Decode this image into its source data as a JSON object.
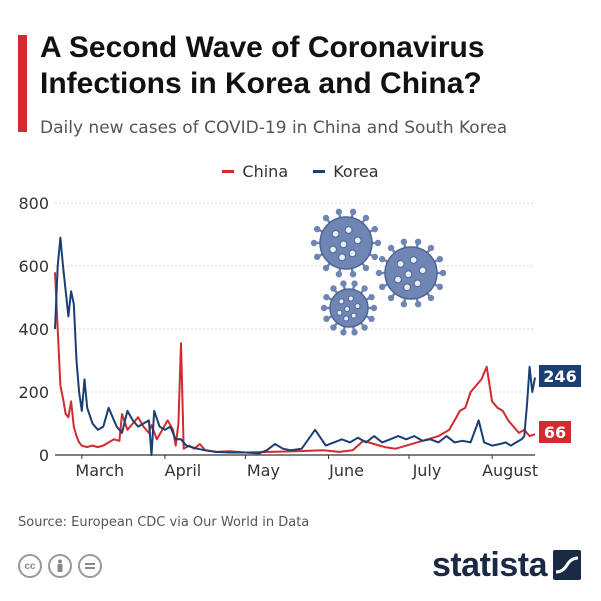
{
  "header": {
    "title": "A Second Wave of Coronavirus Infections in Korea and China?",
    "subtitle": "Daily new cases of COVID-19 in China and South Korea"
  },
  "legend": {
    "china_label": "China",
    "korea_label": "Korea"
  },
  "colors": {
    "china": "#d32a2f",
    "korea": "#1b3f73",
    "accent": "#d32a2f",
    "virus": "#6f86b4"
  },
  "footer": {
    "source": "Source: European CDC via Our World in Data",
    "brand": "statista",
    "icons": [
      "cc-icon",
      "by-icon",
      "nd-icon"
    ]
  },
  "chart_data": {
    "type": "line",
    "ylim": [
      0,
      800
    ],
    "yticks": [
      0,
      200,
      400,
      600,
      800
    ],
    "xtick_labels": [
      "March",
      "April",
      "May",
      "June",
      "July",
      "August"
    ],
    "x_start": "2020-02-20",
    "x_end": "2020-08-17",
    "grid": true,
    "legend_position": "top-center",
    "series": [
      {
        "name": "China",
        "end_label": "66",
        "points": [
          [
            "2020-02-20",
            580
          ],
          [
            "2020-02-21",
            400
          ],
          [
            "2020-02-22",
            220
          ],
          [
            "2020-02-23",
            180
          ],
          [
            "2020-02-24",
            130
          ],
          [
            "2020-02-25",
            120
          ],
          [
            "2020-02-26",
            170
          ],
          [
            "2020-02-27",
            90
          ],
          [
            "2020-02-28",
            60
          ],
          [
            "2020-02-29",
            40
          ],
          [
            "2020-03-01",
            30
          ],
          [
            "2020-03-03",
            25
          ],
          [
            "2020-03-05",
            30
          ],
          [
            "2020-03-07",
            25
          ],
          [
            "2020-03-09",
            30
          ],
          [
            "2020-03-11",
            40
          ],
          [
            "2020-03-13",
            50
          ],
          [
            "2020-03-15",
            45
          ],
          [
            "2020-03-16",
            130
          ],
          [
            "2020-03-18",
            80
          ],
          [
            "2020-03-20",
            100
          ],
          [
            "2020-03-22",
            120
          ],
          [
            "2020-03-24",
            90
          ],
          [
            "2020-03-26",
            70
          ],
          [
            "2020-03-27",
            95
          ],
          [
            "2020-03-29",
            50
          ],
          [
            "2020-03-31",
            80
          ],
          [
            "2020-04-02",
            110
          ],
          [
            "2020-04-04",
            80
          ],
          [
            "2020-04-05",
            30
          ],
          [
            "2020-04-06",
            100
          ],
          [
            "2020-04-07",
            355
          ],
          [
            "2020-04-08",
            20
          ],
          [
            "2020-04-10",
            30
          ],
          [
            "2020-04-12",
            20
          ],
          [
            "2020-04-14",
            35
          ],
          [
            "2020-04-16",
            15
          ],
          [
            "2020-04-20",
            10
          ],
          [
            "2020-04-25",
            12
          ],
          [
            "2020-05-01",
            8
          ],
          [
            "2020-05-10",
            10
          ],
          [
            "2020-05-20",
            12
          ],
          [
            "2020-05-30",
            15
          ],
          [
            "2020-06-05",
            10
          ],
          [
            "2020-06-10",
            15
          ],
          [
            "2020-06-14",
            45
          ],
          [
            "2020-06-18",
            35
          ],
          [
            "2020-06-22",
            25
          ],
          [
            "2020-06-26",
            20
          ],
          [
            "2020-06-30",
            30
          ],
          [
            "2020-07-04",
            40
          ],
          [
            "2020-07-08",
            50
          ],
          [
            "2020-07-12",
            60
          ],
          [
            "2020-07-16",
            80
          ],
          [
            "2020-07-18",
            110
          ],
          [
            "2020-07-20",
            140
          ],
          [
            "2020-07-22",
            150
          ],
          [
            "2020-07-24",
            200
          ],
          [
            "2020-07-26",
            220
          ],
          [
            "2020-07-28",
            240
          ],
          [
            "2020-07-30",
            280
          ],
          [
            "2020-08-01",
            170
          ],
          [
            "2020-08-03",
            150
          ],
          [
            "2020-08-05",
            140
          ],
          [
            "2020-08-07",
            110
          ],
          [
            "2020-08-09",
            90
          ],
          [
            "2020-08-11",
            70
          ],
          [
            "2020-08-13",
            80
          ],
          [
            "2020-08-15",
            60
          ],
          [
            "2020-08-17",
            66
          ]
        ]
      },
      {
        "name": "Korea",
        "end_label": "246",
        "points": [
          [
            "2020-02-20",
            400
          ],
          [
            "2020-02-21",
            600
          ],
          [
            "2020-02-22",
            690
          ],
          [
            "2020-02-23",
            600
          ],
          [
            "2020-02-24",
            520
          ],
          [
            "2020-02-25",
            440
          ],
          [
            "2020-02-26",
            520
          ],
          [
            "2020-02-27",
            480
          ],
          [
            "2020-02-28",
            300
          ],
          [
            "2020-02-29",
            200
          ],
          [
            "2020-03-01",
            140
          ],
          [
            "2020-03-02",
            240
          ],
          [
            "2020-03-03",
            150
          ],
          [
            "2020-03-05",
            100
          ],
          [
            "2020-03-07",
            80
          ],
          [
            "2020-03-09",
            90
          ],
          [
            "2020-03-11",
            150
          ],
          [
            "2020-03-13",
            110
          ],
          [
            "2020-03-14",
            90
          ],
          [
            "2020-03-16",
            70
          ],
          [
            "2020-03-18",
            140
          ],
          [
            "2020-03-20",
            110
          ],
          [
            "2020-03-22",
            90
          ],
          [
            "2020-03-24",
            100
          ],
          [
            "2020-03-26",
            110
          ],
          [
            "2020-03-27",
            0
          ],
          [
            "2020-03-28",
            140
          ],
          [
            "2020-03-30",
            90
          ],
          [
            "2020-04-01",
            80
          ],
          [
            "2020-04-03",
            90
          ],
          [
            "2020-04-05",
            50
          ],
          [
            "2020-04-07",
            50
          ],
          [
            "2020-04-09",
            30
          ],
          [
            "2020-04-11",
            25
          ],
          [
            "2020-04-13",
            20
          ],
          [
            "2020-04-16",
            15
          ],
          [
            "2020-04-20",
            10
          ],
          [
            "2020-04-25",
            8
          ],
          [
            "2020-05-01",
            8
          ],
          [
            "2020-05-06",
            5
          ],
          [
            "2020-05-09",
            15
          ],
          [
            "2020-05-12",
            35
          ],
          [
            "2020-05-15",
            20
          ],
          [
            "2020-05-18",
            15
          ],
          [
            "2020-05-22",
            20
          ],
          [
            "2020-05-27",
            80
          ],
          [
            "2020-05-31",
            30
          ],
          [
            "2020-06-03",
            40
          ],
          [
            "2020-06-06",
            50
          ],
          [
            "2020-06-09",
            40
          ],
          [
            "2020-06-12",
            55
          ],
          [
            "2020-06-15",
            40
          ],
          [
            "2020-06-18",
            60
          ],
          [
            "2020-06-21",
            40
          ],
          [
            "2020-06-24",
            50
          ],
          [
            "2020-06-27",
            60
          ],
          [
            "2020-06-30",
            50
          ],
          [
            "2020-07-03",
            60
          ],
          [
            "2020-07-06",
            45
          ],
          [
            "2020-07-09",
            50
          ],
          [
            "2020-07-12",
            40
          ],
          [
            "2020-07-15",
            60
          ],
          [
            "2020-07-18",
            40
          ],
          [
            "2020-07-21",
            45
          ],
          [
            "2020-07-24",
            40
          ],
          [
            "2020-07-27",
            110
          ],
          [
            "2020-07-29",
            40
          ],
          [
            "2020-08-01",
            30
          ],
          [
            "2020-08-04",
            35
          ],
          [
            "2020-08-06",
            40
          ],
          [
            "2020-08-08",
            30
          ],
          [
            "2020-08-10",
            40
          ],
          [
            "2020-08-12",
            50
          ],
          [
            "2020-08-13",
            60
          ],
          [
            "2020-08-14",
            160
          ],
          [
            "2020-08-15",
            280
          ],
          [
            "2020-08-16",
            200
          ],
          [
            "2020-08-17",
            246
          ]
        ]
      }
    ]
  }
}
